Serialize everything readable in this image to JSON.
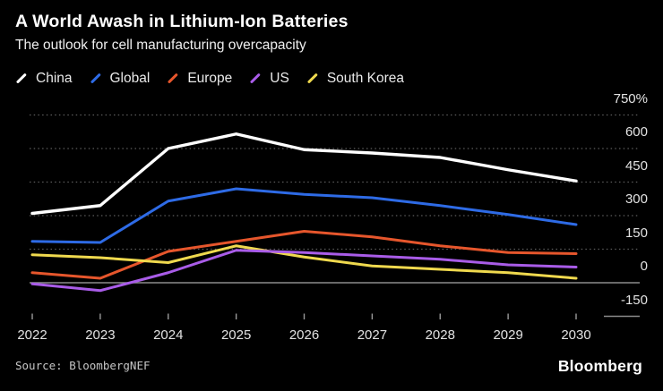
{
  "header": {
    "title": "A World Awash in Lithium-Ion Batteries",
    "subtitle": "The outlook for cell manufacturing overcapacity"
  },
  "source": {
    "label": "Source: BloombergNEF"
  },
  "branding": {
    "logo": "Bloomberg"
  },
  "colors": {
    "background": "#000000",
    "grid_dotted": "#5c5c5c",
    "zero_line": "#8c8c8c",
    "axis_tick": "#9a9a9a",
    "axis_text": "#e3e3e3"
  },
  "chart_data": {
    "type": "line",
    "title": "A World Awash in Lithium-Ion Batteries",
    "subtitle": "The outlook for cell manufacturing overcapacity",
    "x": [
      "2022",
      "2023",
      "2024",
      "2025",
      "2026",
      "2027",
      "2028",
      "2029",
      "2030"
    ],
    "unit": "%",
    "ylim": [
      -150,
      750
    ],
    "y_ticks": [
      {
        "value": 750,
        "label": "750%"
      },
      {
        "value": 600,
        "label": "600"
      },
      {
        "value": 450,
        "label": "450"
      },
      {
        "value": 300,
        "label": "300"
      },
      {
        "value": 150,
        "label": "150"
      },
      {
        "value": 0,
        "label": "0"
      },
      {
        "value": -150,
        "label": "-150"
      }
    ],
    "grid": "dotted-horizontal",
    "legend_position": "top-left",
    "series": [
      {
        "name": "China",
        "color": "#ffffff",
        "values": [
          310,
          345,
          600,
          665,
          595,
          580,
          560,
          505,
          455
        ]
      },
      {
        "name": "Global",
        "color": "#2e6be6",
        "values": [
          185,
          180,
          365,
          420,
          395,
          380,
          345,
          305,
          260
        ]
      },
      {
        "name": "Europe",
        "color": "#e6562c",
        "values": [
          45,
          20,
          140,
          185,
          230,
          205,
          165,
          135,
          130
        ]
      },
      {
        "name": "US",
        "color": "#a95ce8",
        "values": [
          -5,
          -35,
          45,
          145,
          135,
          120,
          105,
          80,
          70
        ]
      },
      {
        "name": "South Korea",
        "color": "#efd94e",
        "values": [
          125,
          112,
          90,
          165,
          115,
          75,
          60,
          45,
          20
        ]
      }
    ],
    "draw_order": [
      "Europe",
      "South Korea",
      "US",
      "Global",
      "China"
    ]
  }
}
